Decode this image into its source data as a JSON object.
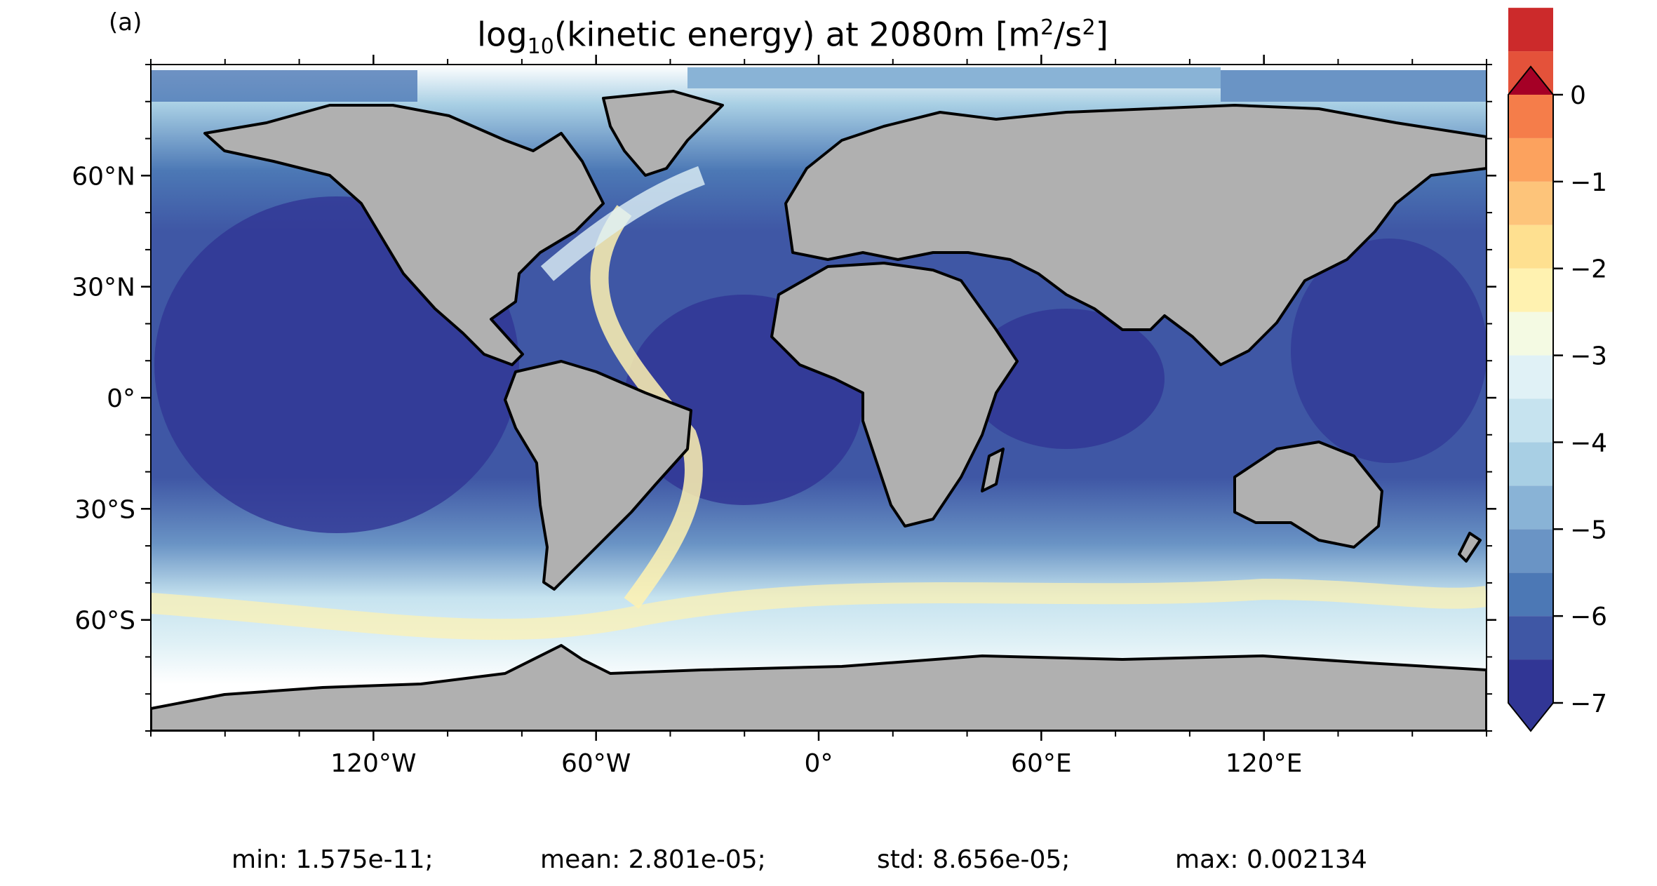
{
  "panel_label": "(a)",
  "title": {
    "prefix": "log",
    "sub": "10",
    "middle": "(kinetic energy) at 2080m [m",
    "sup1": "2",
    "slash": "/s",
    "sup2": "2",
    "suffix": "]"
  },
  "stats": {
    "min": "min: 1.575e-11;",
    "mean": "mean: 2.801e-05;",
    "std": "std: 8.656e-05;",
    "max": "max: 0.002134"
  },
  "colors": {
    "land": "#b0b0b0",
    "ocean_deep": "#313695",
    "ocean_mid": "#4575b4",
    "ocean_light": "#abd9e9",
    "ocean_pale": "#e0f3f8",
    "ocean_yellow": "#fee090",
    "missing": "#ffffff"
  },
  "chart_data": {
    "type": "heatmap",
    "projection": "PlateCarree",
    "xlim": [
      -180,
      180
    ],
    "ylim": [
      -90,
      90
    ],
    "xticks": [
      {
        "value": -120,
        "label": "120°W"
      },
      {
        "value": -60,
        "label": "60°W"
      },
      {
        "value": 0,
        "label": "0°"
      },
      {
        "value": 60,
        "label": "60°E"
      },
      {
        "value": 120,
        "label": "120°E"
      }
    ],
    "yticks": [
      {
        "value": 60,
        "label": "60°N"
      },
      {
        "value": 30,
        "label": "30°N"
      },
      {
        "value": 0,
        "label": "0°"
      },
      {
        "value": -30,
        "label": "30°S"
      },
      {
        "value": -60,
        "label": "60°S"
      }
    ],
    "colorbar": {
      "min": -7,
      "max": 0,
      "step": 0.5,
      "extend": "both",
      "ticks": [
        {
          "value": 0,
          "label": "0"
        },
        {
          "value": -1,
          "label": "−1"
        },
        {
          "value": -2,
          "label": "−2"
        },
        {
          "value": -3,
          "label": "−3"
        },
        {
          "value": -4,
          "label": "−4"
        },
        {
          "value": -5,
          "label": "−5"
        },
        {
          "value": -6,
          "label": "−6"
        },
        {
          "value": -7,
          "label": "−7"
        }
      ],
      "levels_colors": [
        "#313695",
        "#3f57a5",
        "#4c78b5",
        "#6a94c5",
        "#89b3d6",
        "#a8cfe4",
        "#c6e3ef",
        "#e0f1f6",
        "#f4fae3",
        "#fff2b0",
        "#fee090",
        "#fdc47a",
        "#fca25e",
        "#f57d4a",
        "#e4523a",
        "#cc2a2b"
      ],
      "under_color": "#313695",
      "over_color": "#a50026"
    }
  }
}
